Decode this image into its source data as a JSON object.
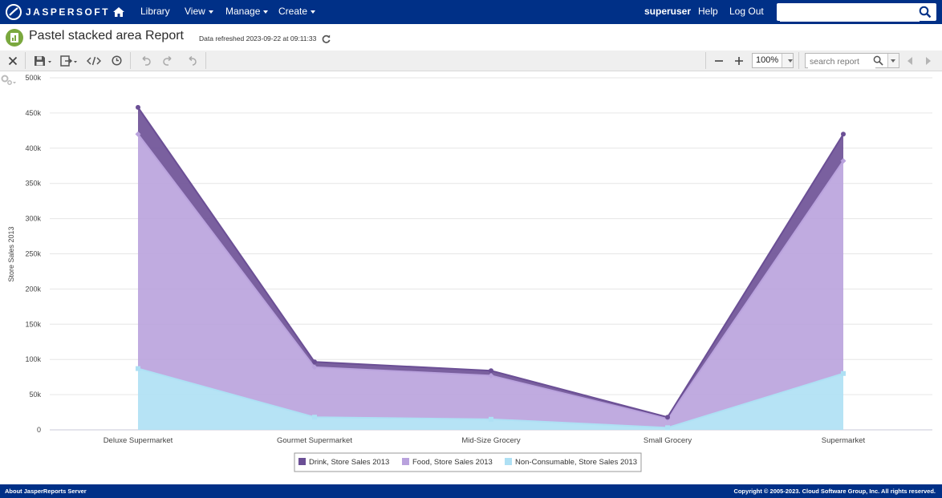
{
  "app": {
    "logo_text": "JASPERSOFT",
    "nav": {
      "library": "Library",
      "view": "View",
      "manage": "Manage",
      "create": "Create",
      "user": "superuser",
      "help": "Help",
      "logout": "Log Out"
    },
    "search_value": ""
  },
  "report": {
    "title": "Pastel stacked area Report",
    "refreshed": "Data refreshed 2023-09-22 at 09:11:33",
    "zoom": "100%",
    "search_placeholder": "search report"
  },
  "icons": {
    "close": "close-icon",
    "save": "save-icon",
    "export": "export-icon",
    "code": "code-icon",
    "history": "clock-icon",
    "undo": "undo-icon",
    "redo": "redo-icon",
    "undo_all": "undo-all-icon",
    "zoom_out": "minus-icon",
    "zoom_in": "plus-icon",
    "prev": "chevron-left-icon",
    "next": "chevron-right-icon"
  },
  "colors": {
    "nav_bg": "#003087",
    "drink": "#6b4f95",
    "food": "#b9a2dd",
    "nonconsumable": "#aee0f4"
  },
  "chart_data": {
    "type": "area",
    "stacked": true,
    "categories": [
      "Deluxe Supermarket",
      "Gourmet Supermarket",
      "Mid-Size Grocery",
      "Small Grocery",
      "Supermarket"
    ],
    "ylabel": "Store Sales 2013",
    "ylim": [
      0,
      500000
    ],
    "yticks": [
      "0",
      "50k",
      "100k",
      "150k",
      "200k",
      "250k",
      "300k",
      "350k",
      "400k",
      "450k",
      "500k"
    ],
    "grid": true,
    "legend_position": "bottom",
    "series": [
      {
        "name": "Drink, Store Sales 2013",
        "color": "#6b4f95",
        "values": [
          38000,
          7500,
          7000,
          2000,
          38000
        ]
      },
      {
        "name": "Food, Store Sales 2013",
        "color": "#b9a2dd",
        "values": [
          333000,
          71000,
          62000,
          13000,
          302000
        ]
      },
      {
        "name": "Non-Consumable, Store Sales 2013",
        "color": "#aee0f4",
        "values": [
          87000,
          18000,
          15000,
          3000,
          80000
        ]
      }
    ]
  },
  "footer": {
    "left": "About JasperReports Server",
    "right": "Copyright © 2005-2023. Cloud Software Group, Inc. All rights reserved."
  }
}
